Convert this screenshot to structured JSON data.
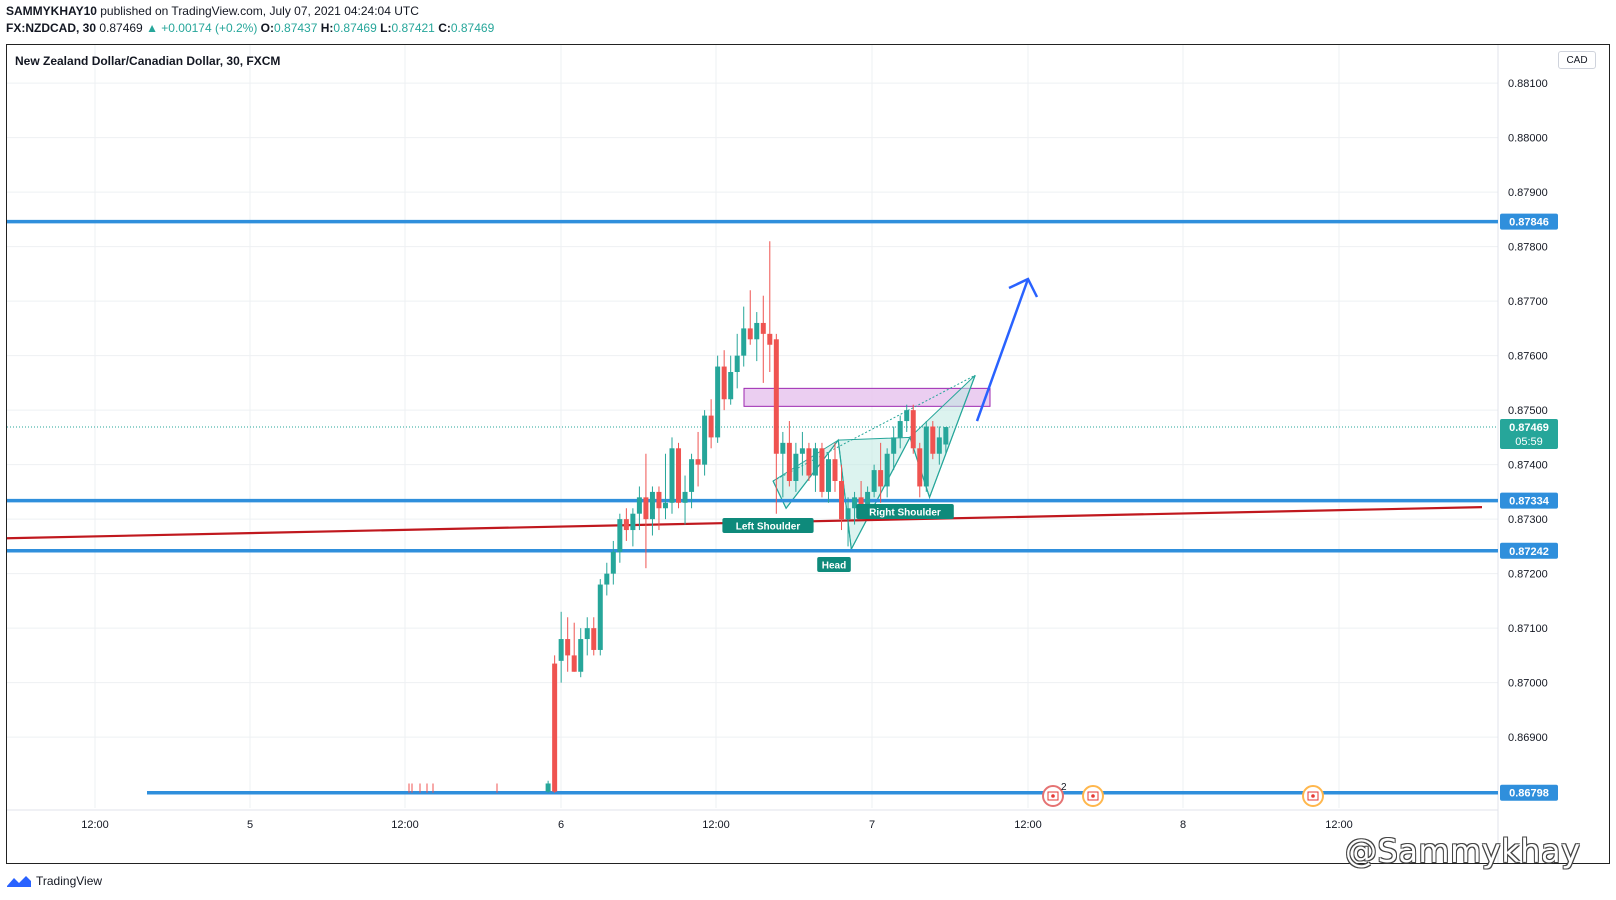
{
  "header": {
    "user": "SAMMYKHAY10",
    "published": " published on TradingView.com, July 07, 2021 04:24:04 UTC",
    "symbol": "FX:NZDCAD, 30",
    "last": " 0.87469 ",
    "change": "▲ +0.00174 (+0.2%)",
    "o_label": " O:",
    "o_value": "0.87437",
    "h_label": " H:",
    "h_value": "0.87469",
    "l_label": " L:",
    "l_value": "0.87421",
    "c_label": " C:",
    "c_value": "0.87469"
  },
  "chart_title": "New Zealand Dollar/Canadian Dollar, 30, FXCM",
  "currency": "CAD",
  "footer": {
    "brand": "TradingView"
  },
  "watermark": "@Sammykhay",
  "colors": {
    "up": "#26a69a",
    "down": "#ef5350",
    "level": "#2f8fdc",
    "trendline": "#c0181e",
    "zone": "#e7c6ee",
    "pattern": "#bfe9e1",
    "arrow": "#2962ff",
    "grid": "#eef0f3"
  },
  "chart_data": {
    "type": "candlestick",
    "ylim": [
      0.8677,
      0.8817
    ],
    "y_ticks": [
      "0.86900",
      "0.87000",
      "0.87100",
      "0.87200",
      "0.87300",
      "0.87400",
      "0.87500",
      "0.87600",
      "0.87700",
      "0.87800",
      "0.87900",
      "0.88000",
      "0.88100"
    ],
    "x_ticks": [
      "12:00",
      "5",
      "12:00",
      "6",
      "12:00",
      "7",
      "12:00",
      "8",
      "12:00"
    ],
    "horizontal_levels": [
      {
        "label": "0.87846",
        "value": 0.87846
      },
      {
        "label": "0.87334",
        "value": 0.87334
      },
      {
        "label": "0.87242",
        "value": 0.87242
      },
      {
        "label": "0.86798",
        "value": 0.86798
      }
    ],
    "last_price": {
      "label": "0.87469",
      "value": 0.87469,
      "countdown": "05:59"
    },
    "trendline": {
      "start": {
        "x": 0,
        "y": 0.87265
      },
      "end": {
        "x": 228,
        "y": 0.87322
      }
    },
    "resistance_zone": {
      "from": 0.87507,
      "to": 0.8754
    },
    "pattern_labels": [
      "Left Shoulder",
      "Head",
      "Right Shoulder"
    ],
    "pattern_points": [
      [
        115.5,
        0.8737
      ],
      [
        117.5,
        0.8732
      ],
      [
        125.5,
        0.87445
      ],
      [
        127.5,
        0.87245
      ],
      [
        136.5,
        0.8745
      ],
      [
        139.5,
        0.8734
      ],
      [
        146.5,
        0.87564
      ]
    ],
    "projection_arrow": [
      [
        150.5,
        0.8748
      ],
      [
        158.5,
        0.87758
      ]
    ],
    "candles": [
      {
        "i": 81,
        "o": 0.868,
        "h": 0.8682,
        "l": 0.86798,
        "c": 0.86815
      },
      {
        "i": 82,
        "o": 0.87035,
        "h": 0.8705,
        "l": 0.86798,
        "c": 0.868
      },
      {
        "i": 83,
        "o": 0.8704,
        "h": 0.8713,
        "l": 0.87,
        "c": 0.8708
      },
      {
        "i": 84,
        "o": 0.8708,
        "h": 0.8712,
        "l": 0.8702,
        "c": 0.8705
      },
      {
        "i": 85,
        "o": 0.8705,
        "h": 0.8711,
        "l": 0.8702,
        "c": 0.8702
      },
      {
        "i": 86,
        "o": 0.8702,
        "h": 0.871,
        "l": 0.8701,
        "c": 0.8708
      },
      {
        "i": 87,
        "o": 0.8708,
        "h": 0.8712,
        "l": 0.8705,
        "c": 0.871
      },
      {
        "i": 88,
        "o": 0.871,
        "h": 0.8712,
        "l": 0.8705,
        "c": 0.8706
      },
      {
        "i": 89,
        "o": 0.8706,
        "h": 0.8719,
        "l": 0.8705,
        "c": 0.8718
      },
      {
        "i": 90,
        "o": 0.8718,
        "h": 0.8722,
        "l": 0.8716,
        "c": 0.872
      },
      {
        "i": 91,
        "o": 0.872,
        "h": 0.8726,
        "l": 0.8718,
        "c": 0.8724
      },
      {
        "i": 92,
        "o": 0.8724,
        "h": 0.8731,
        "l": 0.8722,
        "c": 0.873
      },
      {
        "i": 93,
        "o": 0.873,
        "h": 0.8732,
        "l": 0.8726,
        "c": 0.8728
      },
      {
        "i": 94,
        "o": 0.8728,
        "h": 0.8732,
        "l": 0.8725,
        "c": 0.8731
      },
      {
        "i": 95,
        "o": 0.8731,
        "h": 0.8736,
        "l": 0.8728,
        "c": 0.8734
      },
      {
        "i": 96,
        "o": 0.8734,
        "h": 0.8742,
        "l": 0.8721,
        "c": 0.873
      },
      {
        "i": 97,
        "o": 0.873,
        "h": 0.8736,
        "l": 0.8727,
        "c": 0.8735
      },
      {
        "i": 98,
        "o": 0.8735,
        "h": 0.8736,
        "l": 0.8728,
        "c": 0.8732
      },
      {
        "i": 99,
        "o": 0.8732,
        "h": 0.8742,
        "l": 0.873,
        "c": 0.8733
      },
      {
        "i": 100,
        "o": 0.8733,
        "h": 0.8745,
        "l": 0.8731,
        "c": 0.8743
      },
      {
        "i": 101,
        "o": 0.8743,
        "h": 0.8744,
        "l": 0.8732,
        "c": 0.8733
      },
      {
        "i": 102,
        "o": 0.8733,
        "h": 0.8738,
        "l": 0.8729,
        "c": 0.8735
      },
      {
        "i": 103,
        "o": 0.8735,
        "h": 0.8742,
        "l": 0.8732,
        "c": 0.8741
      },
      {
        "i": 104,
        "o": 0.8741,
        "h": 0.8746,
        "l": 0.8736,
        "c": 0.874
      },
      {
        "i": 105,
        "o": 0.874,
        "h": 0.875,
        "l": 0.8738,
        "c": 0.8749
      },
      {
        "i": 106,
        "o": 0.8749,
        "h": 0.8752,
        "l": 0.8743,
        "c": 0.8745
      },
      {
        "i": 107,
        "o": 0.8745,
        "h": 0.876,
        "l": 0.8744,
        "c": 0.8758
      },
      {
        "i": 108,
        "o": 0.8758,
        "h": 0.8761,
        "l": 0.875,
        "c": 0.8752
      },
      {
        "i": 109,
        "o": 0.8752,
        "h": 0.876,
        "l": 0.8751,
        "c": 0.8757
      },
      {
        "i": 110,
        "o": 0.8757,
        "h": 0.8764,
        "l": 0.8754,
        "c": 0.876
      },
      {
        "i": 111,
        "o": 0.876,
        "h": 0.8769,
        "l": 0.8758,
        "c": 0.8765
      },
      {
        "i": 112,
        "o": 0.8765,
        "h": 0.8772,
        "l": 0.8762,
        "c": 0.8763
      },
      {
        "i": 113,
        "o": 0.8763,
        "h": 0.8768,
        "l": 0.8759,
        "c": 0.8766
      },
      {
        "i": 114,
        "o": 0.8766,
        "h": 0.8771,
        "l": 0.8755,
        "c": 0.8764
      },
      {
        "i": 115,
        "o": 0.8764,
        "h": 0.8781,
        "l": 0.8757,
        "c": 0.8762
      },
      {
        "i": 116,
        "o": 0.8763,
        "h": 0.8764,
        "l": 0.8731,
        "c": 0.8742
      },
      {
        "i": 117,
        "o": 0.8742,
        "h": 0.8746,
        "l": 0.8734,
        "c": 0.8744
      },
      {
        "i": 118,
        "o": 0.8744,
        "h": 0.8748,
        "l": 0.8736,
        "c": 0.8737
      },
      {
        "i": 119,
        "o": 0.8737,
        "h": 0.8744,
        "l": 0.8735,
        "c": 0.8742
      },
      {
        "i": 120,
        "o": 0.8742,
        "h": 0.8746,
        "l": 0.8738,
        "c": 0.8743
      },
      {
        "i": 121,
        "o": 0.8743,
        "h": 0.8744,
        "l": 0.8737,
        "c": 0.8738
      },
      {
        "i": 122,
        "o": 0.8738,
        "h": 0.8744,
        "l": 0.8735,
        "c": 0.8743
      },
      {
        "i": 123,
        "o": 0.8743,
        "h": 0.8744,
        "l": 0.8734,
        "c": 0.8735
      },
      {
        "i": 124,
        "o": 0.8735,
        "h": 0.8742,
        "l": 0.8733,
        "c": 0.8741
      },
      {
        "i": 125,
        "o": 0.8741,
        "h": 0.8744,
        "l": 0.8735,
        "c": 0.8737
      },
      {
        "i": 126,
        "o": 0.8737,
        "h": 0.874,
        "l": 0.8728,
        "c": 0.873
      },
      {
        "i": 127,
        "o": 0.873,
        "h": 0.8734,
        "l": 0.8725,
        "c": 0.8732
      },
      {
        "i": 128,
        "o": 0.8732,
        "h": 0.8735,
        "l": 0.8729,
        "c": 0.8734
      },
      {
        "i": 129,
        "o": 0.8734,
        "h": 0.8737,
        "l": 0.873,
        "c": 0.8732
      },
      {
        "i": 130,
        "o": 0.8732,
        "h": 0.8736,
        "l": 0.8731,
        "c": 0.8735
      },
      {
        "i": 131,
        "o": 0.8735,
        "h": 0.874,
        "l": 0.8734,
        "c": 0.8739
      },
      {
        "i": 132,
        "o": 0.8739,
        "h": 0.8744,
        "l": 0.8733,
        "c": 0.8736
      },
      {
        "i": 133,
        "o": 0.8736,
        "h": 0.8743,
        "l": 0.8734,
        "c": 0.8742
      },
      {
        "i": 134,
        "o": 0.8742,
        "h": 0.8747,
        "l": 0.8739,
        "c": 0.8745
      },
      {
        "i": 135,
        "o": 0.8745,
        "h": 0.8749,
        "l": 0.8743,
        "c": 0.8748
      },
      {
        "i": 136,
        "o": 0.8748,
        "h": 0.8751,
        "l": 0.8746,
        "c": 0.875
      },
      {
        "i": 137,
        "o": 0.875,
        "h": 0.8751,
        "l": 0.8742,
        "c": 0.8743
      },
      {
        "i": 138,
        "o": 0.8743,
        "h": 0.8744,
        "l": 0.8734,
        "c": 0.8736
      },
      {
        "i": 139,
        "o": 0.8736,
        "h": 0.8748,
        "l": 0.8735,
        "c": 0.8747
      },
      {
        "i": 140,
        "o": 0.8747,
        "h": 0.8748,
        "l": 0.8741,
        "c": 0.8742
      },
      {
        "i": 141,
        "o": 0.8742,
        "h": 0.8747,
        "l": 0.874,
        "c": 0.8745
      },
      {
        "i": 142,
        "o": 0.87437,
        "h": 0.87469,
        "l": 0.87421,
        "c": 0.87469
      }
    ]
  }
}
